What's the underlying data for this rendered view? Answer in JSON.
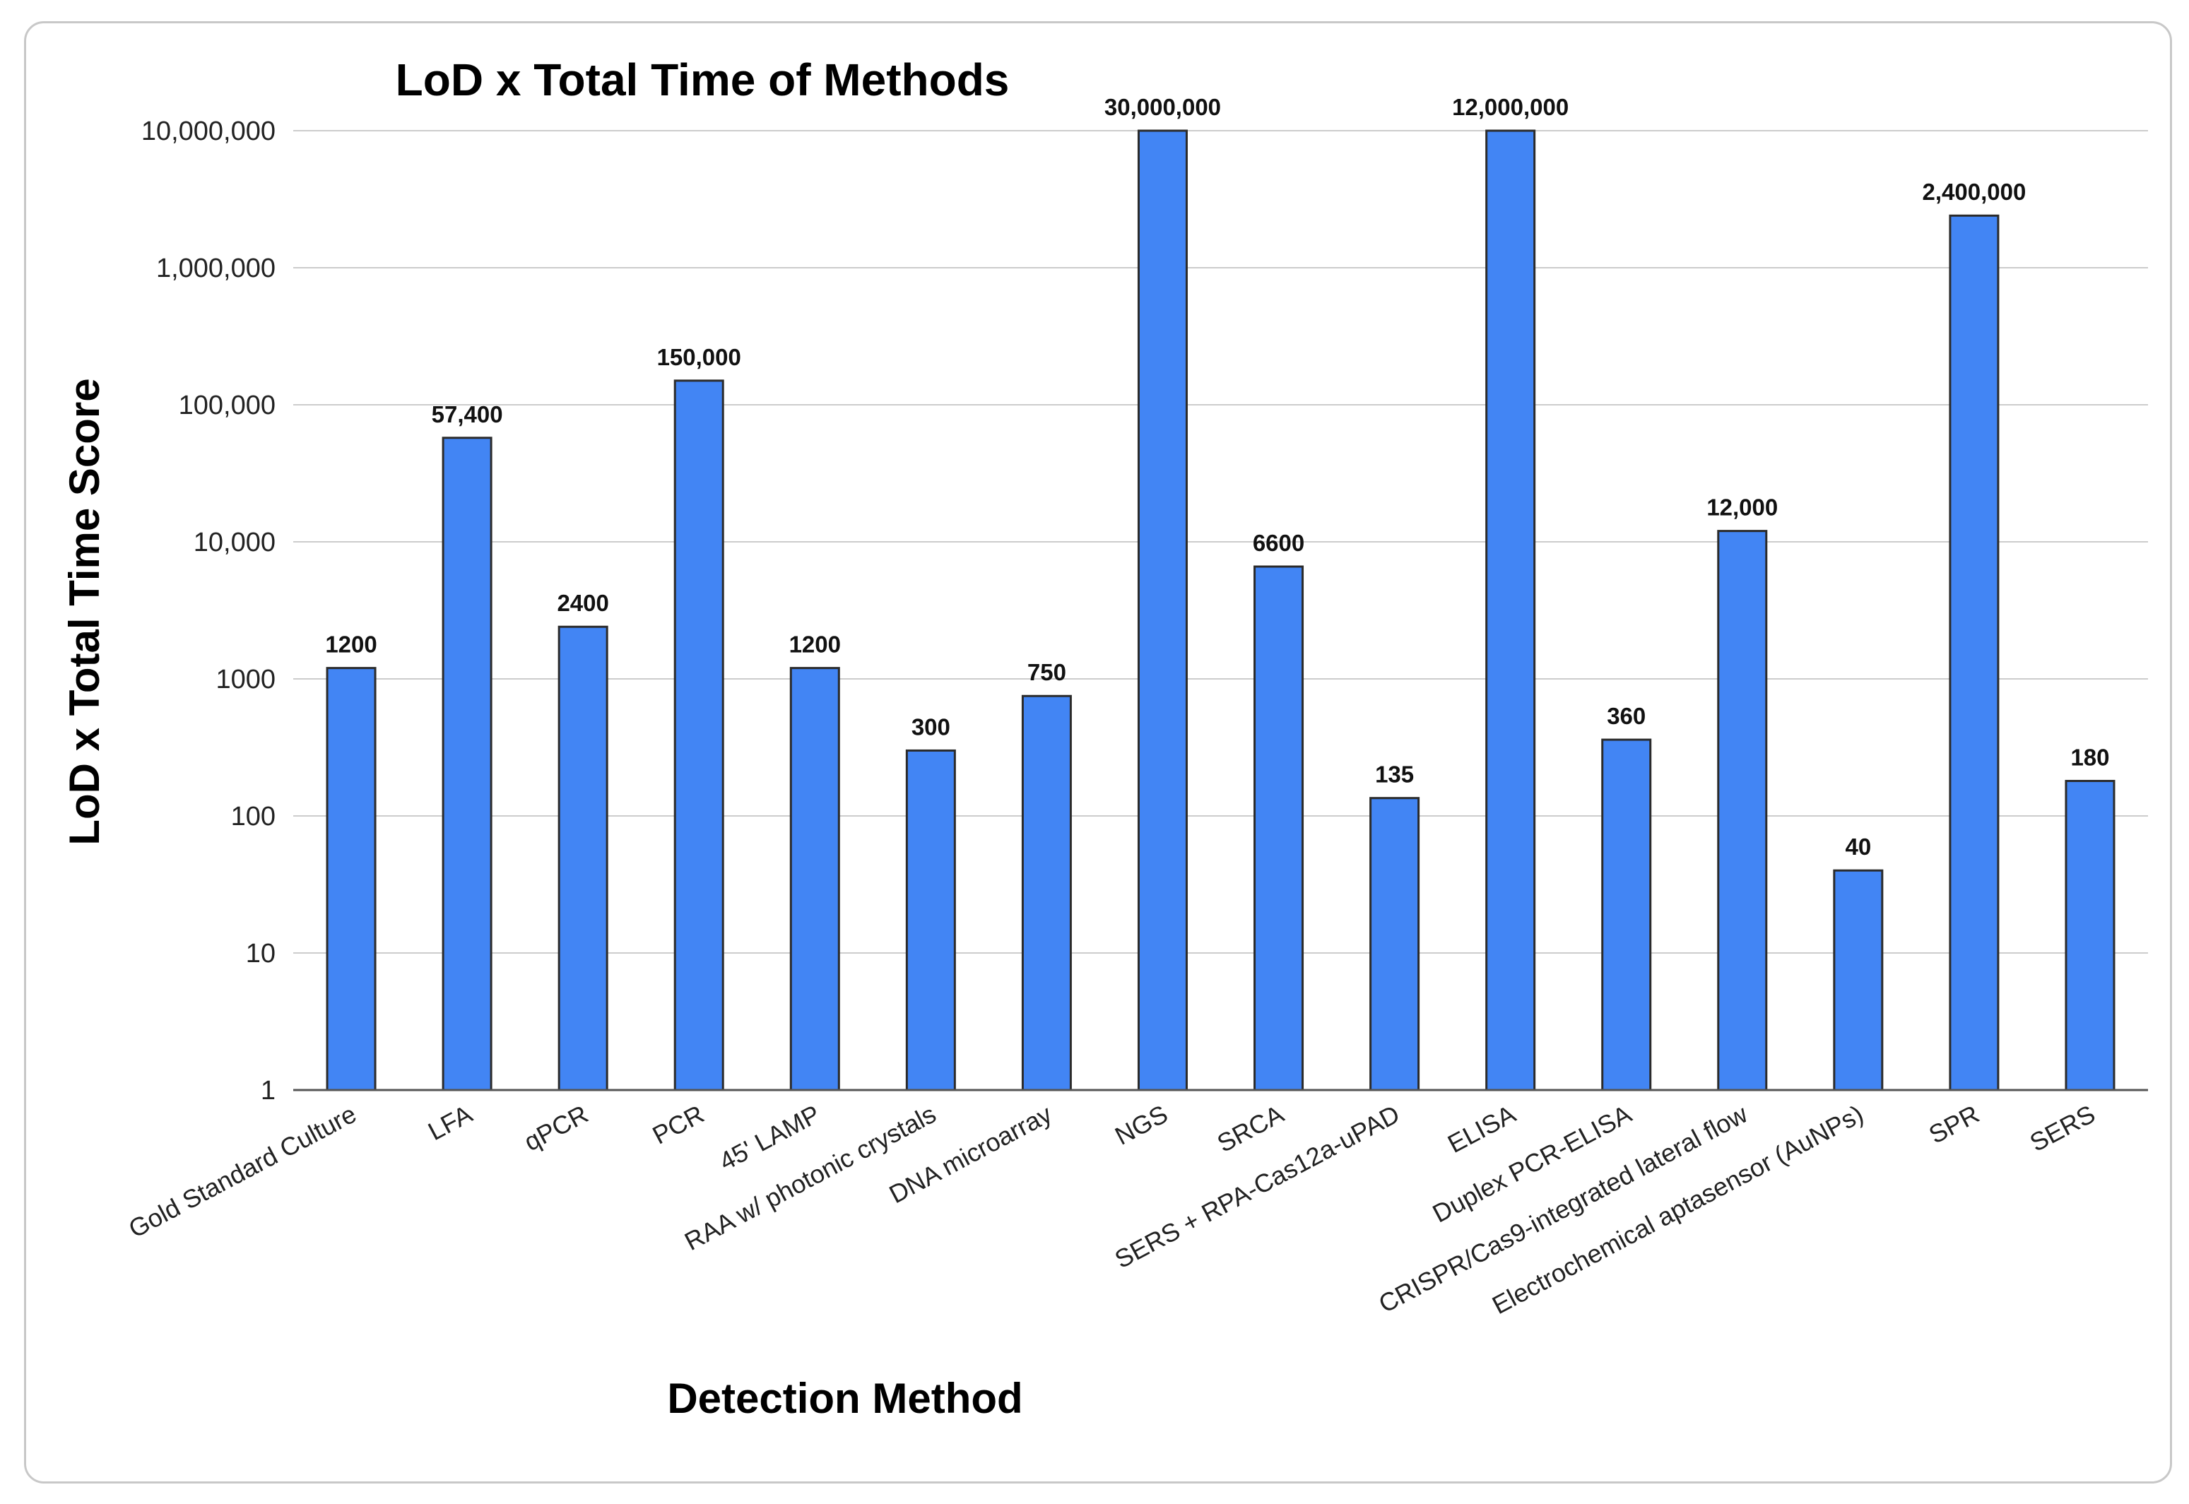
{
  "chart_data": {
    "type": "bar",
    "title": "LoD x Total Time of Methods",
    "xlabel": "Detection Method",
    "ylabel": "LoD x Total Time Score",
    "yscale": "log",
    "ylim": [
      1,
      10000000
    ],
    "grid": true,
    "legend": "none",
    "bar_color": "#4285f4",
    "y_ticks": [
      {
        "value": 1,
        "label": "1"
      },
      {
        "value": 10,
        "label": "10"
      },
      {
        "value": 100,
        "label": "100"
      },
      {
        "value": 1000,
        "label": "1000"
      },
      {
        "value": 10000,
        "label": "10,000"
      },
      {
        "value": 100000,
        "label": "100,000"
      },
      {
        "value": 1000000,
        "label": "1,000,000"
      },
      {
        "value": 10000000,
        "label": "10,000,000"
      }
    ],
    "categories": [
      "Gold Standard Culture",
      "LFA",
      "qPCR",
      "PCR",
      "45' LAMP",
      "RAA w/ photonic crystals",
      "DNA microarray",
      "NGS",
      "SRCA",
      "SERS + RPA-Cas12a-uPAD",
      "ELISA",
      "Duplex PCR-ELISA",
      "CRISPR/Cas9-integrated lateral flow",
      "Electrochemical aptasensor (AuNPs)",
      "SPR",
      "SERS"
    ],
    "values": [
      1200,
      57400,
      2400,
      150000,
      1200,
      300,
      750,
      30000000,
      6600,
      135,
      12000000,
      360,
      12000,
      40,
      2400000,
      180
    ],
    "data_labels": [
      "1200",
      "57,400",
      "2400",
      "150,000",
      "1200",
      "300",
      "750",
      "30,000,000",
      "6600",
      "135",
      "12,000,000",
      "360",
      "12,000",
      "40",
      "2,400,000",
      "180"
    ]
  }
}
